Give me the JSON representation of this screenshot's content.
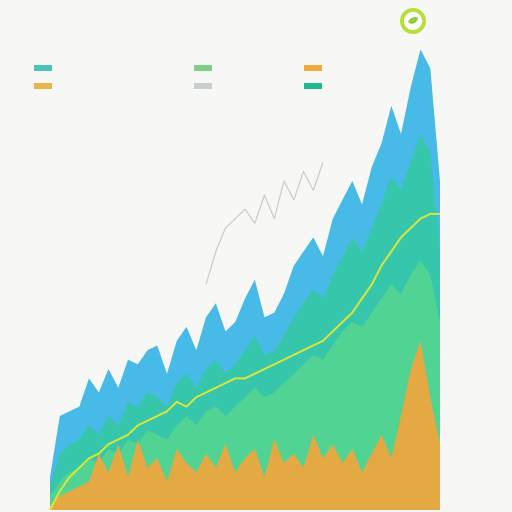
{
  "header": {
    "title_line1": "",
    "title_line2": "",
    "badge_icon": "leaf-badge-icon"
  },
  "legend": {
    "items": [
      {
        "label": "",
        "color": "#4cc3b8"
      },
      {
        "label": "",
        "color": "#7ecf86"
      },
      {
        "label": "",
        "color": "#f2a93b"
      },
      {
        "label": "",
        "color": "#e7b54a"
      },
      {
        "label": "",
        "color": "#c9cfcc"
      },
      {
        "label": "",
        "color": "#1fb890"
      }
    ]
  },
  "colors": {
    "blue": "#33b3e6",
    "teal": "#34c8a0",
    "green": "#56d68e",
    "orange": "#f4a43a",
    "yellow_line": "#d6e63a",
    "sketch_line": "#c9cccb",
    "background": "#f7f8f6"
  },
  "chart_data": {
    "type": "area",
    "title": "",
    "xlabel": "",
    "ylabel": "",
    "grid": false,
    "legend_position": "top",
    "ylim": [
      0,
      100
    ],
    "x": [
      0,
      1,
      2,
      3,
      4,
      5,
      6,
      7,
      8,
      9,
      10,
      11,
      12,
      13,
      14,
      15,
      16,
      17,
      18,
      19,
      20,
      21,
      22,
      23,
      24,
      25,
      26,
      27,
      28,
      29,
      30,
      31,
      32,
      33,
      34,
      35,
      36,
      37,
      38,
      39,
      40
    ],
    "series": [
      {
        "key": "blue",
        "values": [
          7,
          20,
          21,
          22,
          28,
          25,
          30,
          26,
          32,
          31,
          34,
          35,
          29,
          36,
          39,
          34,
          41,
          44,
          38,
          40,
          45,
          49,
          41,
          42,
          46,
          52,
          55,
          58,
          54,
          62,
          66,
          70,
          65,
          73,
          78,
          86,
          80,
          90,
          98,
          94,
          70
        ]
      },
      {
        "key": "teal",
        "values": [
          5,
          12,
          14,
          15,
          18,
          16,
          20,
          18,
          23,
          22,
          25,
          24,
          22,
          27,
          29,
          26,
          30,
          32,
          29,
          31,
          34,
          37,
          33,
          34,
          37,
          41,
          44,
          47,
          45,
          50,
          54,
          58,
          55,
          60,
          65,
          71,
          68,
          74,
          80,
          76,
          55
        ]
      },
      {
        "key": "green",
        "values": [
          3,
          6,
          8,
          9,
          11,
          10,
          13,
          12,
          15,
          14,
          17,
          16,
          15,
          18,
          20,
          18,
          21,
          22,
          20,
          22,
          24,
          26,
          24,
          25,
          27,
          29,
          31,
          33,
          32,
          35,
          38,
          40,
          39,
          42,
          45,
          48,
          46,
          50,
          53,
          50,
          40
        ]
      },
      {
        "key": "orange",
        "values": [
          1,
          3,
          4,
          5,
          6,
          12,
          8,
          14,
          7,
          15,
          9,
          11,
          6,
          13,
          10,
          8,
          12,
          9,
          14,
          8,
          11,
          13,
          7,
          15,
          10,
          12,
          9,
          16,
          11,
          14,
          10,
          13,
          8,
          12,
          16,
          11,
          20,
          30,
          36,
          24,
          14
        ]
      },
      {
        "key": "yellow_line",
        "values": [
          0,
          4,
          7,
          9,
          11,
          12,
          14,
          15,
          16,
          18,
          19,
          20,
          21,
          23,
          22,
          24,
          25,
          26,
          27,
          28,
          28,
          29,
          30,
          31,
          32,
          33,
          34,
          35,
          36,
          38,
          40,
          42,
          45,
          48,
          52,
          55,
          58,
          60,
          62,
          63,
          63
        ]
      },
      {
        "key": "sketch_line",
        "values": [
          null,
          null,
          null,
          null,
          null,
          null,
          null,
          null,
          null,
          null,
          null,
          null,
          null,
          null,
          null,
          null,
          48,
          55,
          60,
          62,
          64,
          61,
          67,
          62,
          70,
          66,
          72,
          68,
          74,
          null,
          null,
          null,
          null,
          null,
          null,
          null,
          null,
          null,
          null,
          null,
          null
        ]
      }
    ]
  }
}
